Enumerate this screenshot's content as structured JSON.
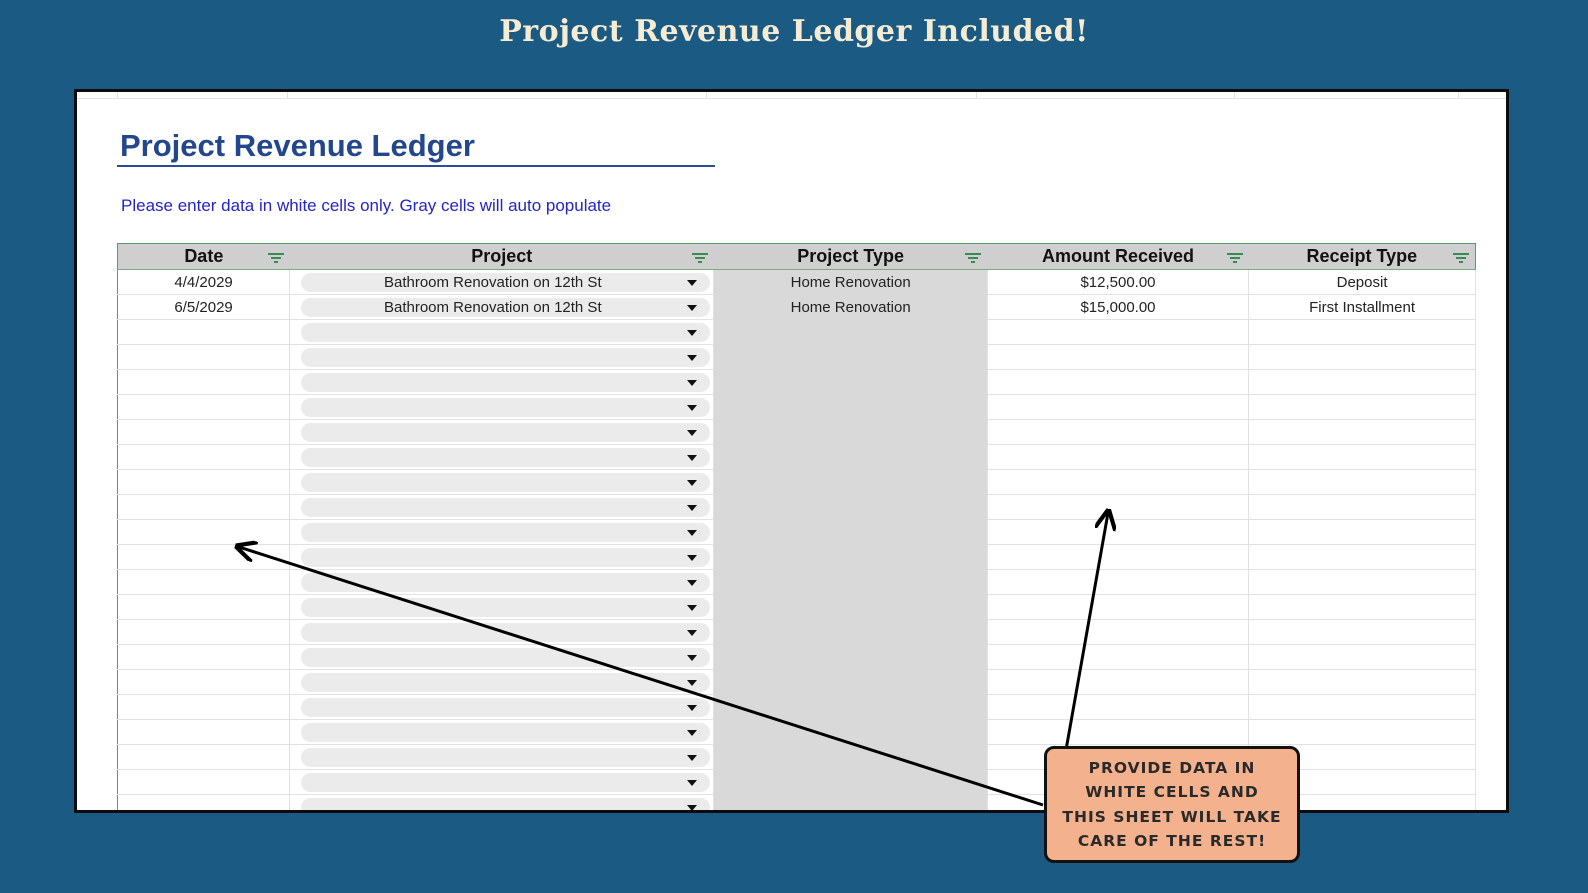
{
  "banner": {
    "title": "Project Revenue Ledger Included!"
  },
  "sheet": {
    "title": "Project Revenue Ledger",
    "instruction": "Please enter data in white cells only. Gray cells will auto populate",
    "columns": [
      "Date",
      "Project",
      "Project Type",
      "Amount Received",
      "Receipt Type"
    ],
    "rows": [
      {
        "date": "4/4/2029",
        "project": "Bathroom Renovation on 12th St",
        "project_type": "Home Renovation",
        "amount": "$12,500.00",
        "receipt_type": "Deposit"
      },
      {
        "date": "6/5/2029",
        "project": "Bathroom Renovation on 12th St",
        "project_type": "Home Renovation",
        "amount": "$15,000.00",
        "receipt_type": "First Installment"
      },
      {
        "date": "",
        "project": "",
        "project_type": "",
        "amount": "",
        "receipt_type": ""
      },
      {
        "date": "",
        "project": "",
        "project_type": "",
        "amount": "",
        "receipt_type": ""
      },
      {
        "date": "",
        "project": "",
        "project_type": "",
        "amount": "",
        "receipt_type": ""
      },
      {
        "date": "",
        "project": "",
        "project_type": "",
        "amount": "",
        "receipt_type": ""
      },
      {
        "date": "",
        "project": "",
        "project_type": "",
        "amount": "",
        "receipt_type": ""
      },
      {
        "date": "",
        "project": "",
        "project_type": "",
        "amount": "",
        "receipt_type": ""
      },
      {
        "date": "",
        "project": "",
        "project_type": "",
        "amount": "",
        "receipt_type": ""
      },
      {
        "date": "",
        "project": "",
        "project_type": "",
        "amount": "",
        "receipt_type": ""
      },
      {
        "date": "",
        "project": "",
        "project_type": "",
        "amount": "",
        "receipt_type": ""
      },
      {
        "date": "",
        "project": "",
        "project_type": "",
        "amount": "",
        "receipt_type": ""
      },
      {
        "date": "",
        "project": "",
        "project_type": "",
        "amount": "",
        "receipt_type": ""
      },
      {
        "date": "",
        "project": "",
        "project_type": "",
        "amount": "",
        "receipt_type": ""
      },
      {
        "date": "",
        "project": "",
        "project_type": "",
        "amount": "",
        "receipt_type": ""
      },
      {
        "date": "",
        "project": "",
        "project_type": "",
        "amount": "",
        "receipt_type": ""
      },
      {
        "date": "",
        "project": "",
        "project_type": "",
        "amount": "",
        "receipt_type": ""
      },
      {
        "date": "",
        "project": "",
        "project_type": "",
        "amount": "",
        "receipt_type": ""
      },
      {
        "date": "",
        "project": "",
        "project_type": "",
        "amount": "",
        "receipt_type": ""
      },
      {
        "date": "",
        "project": "",
        "project_type": "",
        "amount": "",
        "receipt_type": ""
      },
      {
        "date": "",
        "project": "",
        "project_type": "",
        "amount": "",
        "receipt_type": ""
      },
      {
        "date": "",
        "project": "",
        "project_type": "",
        "amount": "",
        "receipt_type": ""
      },
      {
        "date": "",
        "project": "",
        "project_type": "",
        "amount": "",
        "receipt_type": ""
      }
    ]
  },
  "callout": {
    "text": "PROVIDE DATA IN WHITE CELLS AND THIS SHEET WILL TAKE CARE OF THE REST!"
  },
  "icons": {
    "filter": "filter-icon",
    "dropdown": "chevron-down-icon",
    "arrow": "arrow-icon"
  },
  "colors": {
    "background": "#1b5a82",
    "banner_text": "#f6ecd3",
    "title": "#23478c",
    "instruction": "#2424c8",
    "header_fill": "#cfcfcf",
    "auto_fill": "#d9d9d9",
    "callout_fill": "#f4b18d"
  }
}
